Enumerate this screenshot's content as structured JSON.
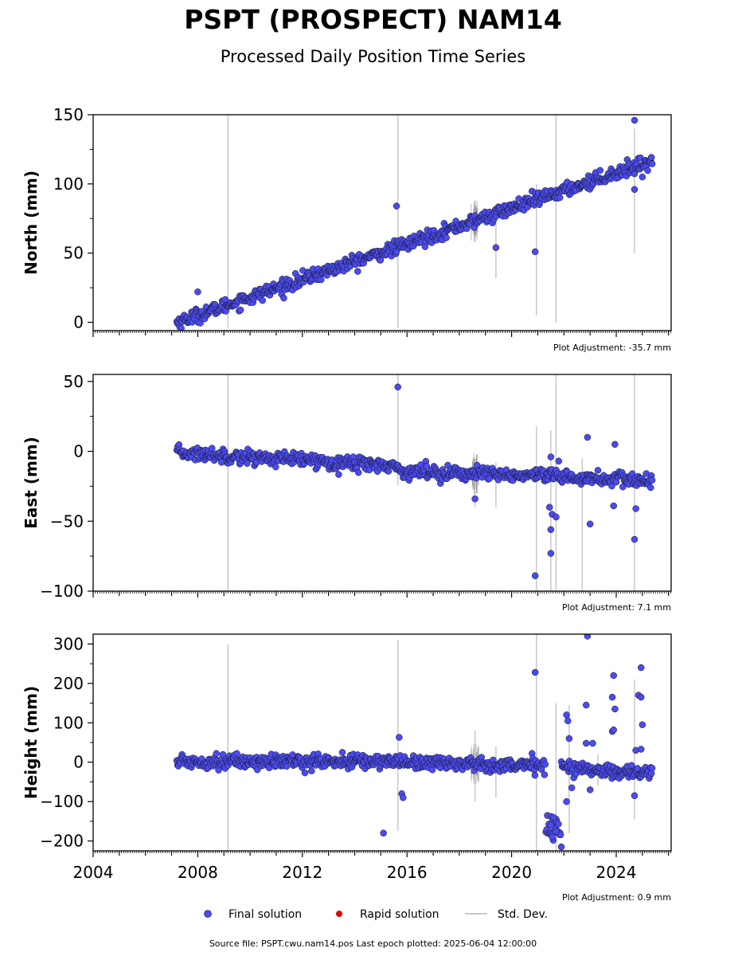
{
  "title": "PSPT (PROSPECT) NAM14",
  "subtitle": "Processed Daily Position Time Series",
  "legend": {
    "final": "Final solution",
    "rapid": "Rapid solution",
    "stddev": "Std. Dev.",
    "placement": "bottom-center"
  },
  "source_text": "Source file: PSPT.cwu.nam14.pos  Last epoch plotted: 2025-06-04 12:00:00",
  "colors": {
    "final": "#4b4bf0",
    "rapid": "#e00000",
    "stddev": "#c8c8c8",
    "edge": "#111111"
  },
  "chart_data": [
    {
      "type": "scatter",
      "ylabel": "North (mm)",
      "adjustment": "Plot Adjustment: -35.7 mm",
      "xlim": [
        2004.0,
        2026.1
      ],
      "ylim": [
        -6,
        150
      ],
      "yticks": [
        0,
        50,
        100,
        150
      ],
      "ytick_labels": [
        "0",
        "50",
        "100",
        "150"
      ],
      "xticks": [],
      "trend": [
        [
          2007.2,
          0
        ],
        [
          2025.4,
          117
        ]
      ],
      "noise": 2.5,
      "outliers": [
        [
          2015.6,
          84
        ],
        [
          2019.4,
          54
        ],
        [
          2020.9,
          51
        ],
        [
          2024.7,
          146
        ],
        [
          2024.7,
          96
        ],
        [
          2025.0,
          105
        ],
        [
          2008.0,
          22
        ]
      ],
      "errorbars": [
        [
          2009.15,
          -4,
          150
        ],
        [
          2015.65,
          -4,
          150
        ],
        [
          2020.95,
          5,
          100
        ],
        [
          2021.7,
          0,
          150
        ],
        [
          2024.7,
          50,
          140
        ],
        [
          2018.6,
          58,
          88
        ],
        [
          2019.4,
          32,
          75
        ]
      ]
    },
    {
      "type": "scatter",
      "ylabel": "East (mm)",
      "adjustment": "Plot Adjustment: 7.1 mm",
      "xlim": [
        2004.0,
        2026.1
      ],
      "ylim": [
        -100,
        55
      ],
      "yticks": [
        -100,
        -50,
        0,
        50
      ],
      "ytick_labels": [
        "−100",
        "−50",
        "0",
        "50"
      ],
      "xticks": [],
      "trend": [
        [
          2007.2,
          -1
        ],
        [
          2015.5,
          -10
        ],
        [
          2015.7,
          -14
        ],
        [
          2025.4,
          -21
        ]
      ],
      "noise": 2.5,
      "outliers": [
        [
          2015.65,
          46
        ],
        [
          2018.6,
          -34
        ],
        [
          2020.9,
          -89
        ],
        [
          2021.5,
          -73
        ],
        [
          2021.5,
          -56
        ],
        [
          2021.45,
          -40
        ],
        [
          2021.55,
          -45
        ],
        [
          2021.7,
          -47
        ],
        [
          2021.8,
          -7
        ],
        [
          2022.9,
          10
        ],
        [
          2023.0,
          -52
        ],
        [
          2023.9,
          -39
        ],
        [
          2023.95,
          5
        ],
        [
          2024.7,
          -63
        ],
        [
          2024.75,
          -41
        ],
        [
          2021.5,
          -4
        ]
      ],
      "errorbars": [
        [
          2009.15,
          -100,
          55
        ],
        [
          2015.65,
          -24,
          55
        ],
        [
          2020.95,
          -100,
          18
        ],
        [
          2021.5,
          -100,
          15
        ],
        [
          2021.7,
          -100,
          55
        ],
        [
          2024.7,
          -100,
          55
        ],
        [
          2022.7,
          -100,
          -5
        ],
        [
          2018.6,
          -40,
          -5
        ],
        [
          2019.4,
          -40,
          -8
        ]
      ]
    },
    {
      "type": "scatter",
      "ylabel": "Height (mm)",
      "adjustment": "Plot Adjustment: 0.9 mm",
      "xlim": [
        2004.0,
        2026.1
      ],
      "ylim": [
        -225,
        325
      ],
      "yticks": [
        -200,
        -100,
        0,
        100,
        200,
        300
      ],
      "ytick_labels": [
        "−200",
        "−100",
        "0",
        "100",
        "200",
        "300"
      ],
      "xticks": [
        2004,
        2008,
        2012,
        2016,
        2020,
        2024
      ],
      "xtick_labels": [
        "2004",
        "2008",
        "2012",
        "2016",
        "2020",
        "2024"
      ],
      "trend": [
        [
          2007.2,
          2
        ],
        [
          2015.5,
          2
        ],
        [
          2021.3,
          -10
        ],
        [
          2025.4,
          -30
        ]
      ],
      "noise": 9,
      "outliers": [
        [
          2015.1,
          -180
        ],
        [
          2015.7,
          63
        ],
        [
          2015.8,
          -80
        ],
        [
          2015.85,
          -90
        ],
        [
          2020.9,
          228
        ],
        [
          2021.5,
          -160
        ],
        [
          2021.55,
          -190
        ],
        [
          2021.6,
          -140
        ],
        [
          2021.7,
          -175
        ],
        [
          2021.9,
          -215
        ],
        [
          2022.1,
          120
        ],
        [
          2022.15,
          105
        ],
        [
          2022.2,
          60
        ],
        [
          2022.1,
          -100
        ],
        [
          2022.3,
          -65
        ],
        [
          2022.9,
          320
        ],
        [
          2022.85,
          145
        ],
        [
          2023.1,
          48
        ],
        [
          2023.0,
          -70
        ],
        [
          2022.85,
          48
        ],
        [
          2023.85,
          165
        ],
        [
          2023.9,
          220
        ],
        [
          2023.95,
          135
        ],
        [
          2023.85,
          78
        ],
        [
          2023.9,
          82
        ],
        [
          2024.75,
          30
        ],
        [
          2024.7,
          -85
        ],
        [
          2024.85,
          170
        ],
        [
          2024.95,
          240
        ],
        [
          2024.95,
          165
        ],
        [
          2025.0,
          95
        ],
        [
          2024.95,
          33
        ]
      ],
      "errorbars": [
        [
          2009.15,
          -225,
          300
        ],
        [
          2015.65,
          -175,
          310
        ],
        [
          2020.95,
          -225,
          325
        ],
        [
          2021.7,
          -225,
          150
        ],
        [
          2024.7,
          -145,
          210
        ],
        [
          2022.2,
          -180,
          145
        ],
        [
          2019.4,
          -90,
          40
        ],
        [
          2018.6,
          -100,
          80
        ],
        [
          2023.3,
          -60,
          20
        ]
      ]
    }
  ]
}
